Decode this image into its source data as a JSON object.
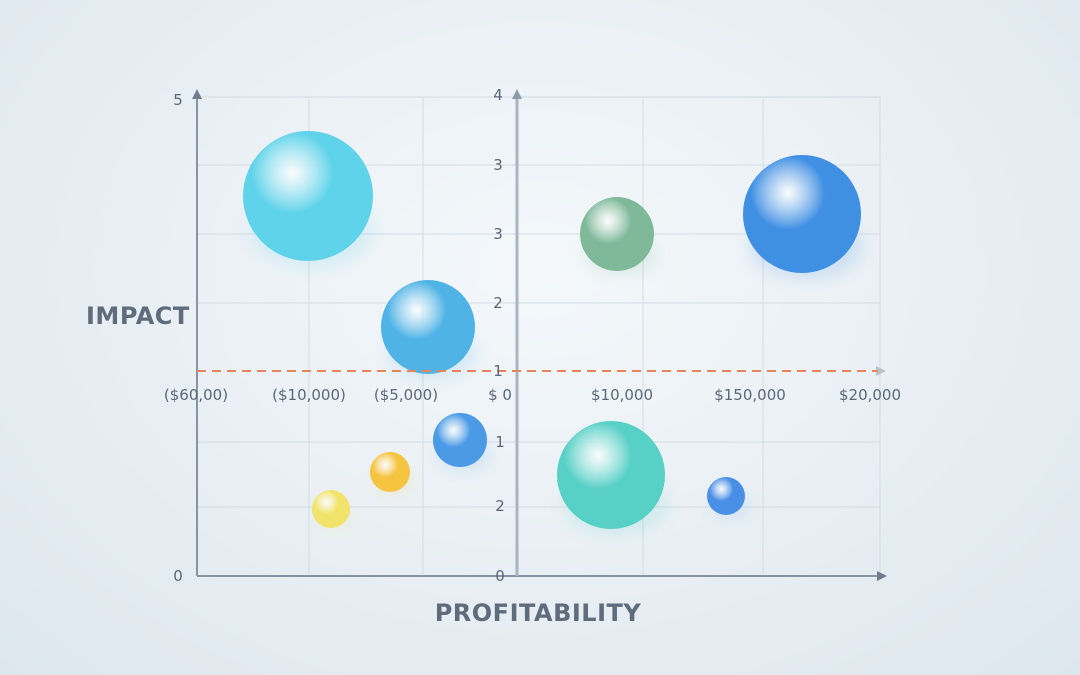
{
  "chart_data": {
    "type": "bubble",
    "title": "",
    "xlabel": "PROFITABILITY",
    "ylabel": "IMPACT",
    "x_tick_labels": [
      "($60,00)",
      "($10,000)",
      "($5,000)",
      "$ 0",
      "$10,000",
      "$150,000",
      "$20,000"
    ],
    "left_y_tick_labels": [
      "5",
      "0"
    ],
    "center_y_tick_labels_upper": [
      "4",
      "3",
      "3",
      "2",
      "1"
    ],
    "center_y_tick_labels_lower": [
      "1",
      "2",
      "0"
    ],
    "reference_line": {
      "style": "dashed",
      "color": "#e8845a",
      "position": "at center-axis 1"
    },
    "grid": true,
    "bubbles": [
      {
        "x": -10000,
        "impact_level": "high",
        "size": "large",
        "color": "#5fd3ea"
      },
      {
        "x": -5000,
        "impact_level": "mid-high",
        "size": "medium-large",
        "color": "#4fb3e6"
      },
      {
        "x": 10000,
        "impact_level": "high",
        "size": "medium",
        "color": "#7fb99a"
      },
      {
        "x": 150000,
        "impact_level": "high",
        "size": "large",
        "color": "#3f8fe3"
      },
      {
        "x": -2000,
        "impact_level": "low",
        "size": "small-medium",
        "color": "#4a9ae6"
      },
      {
        "x": -6000,
        "impact_level": "low",
        "size": "small",
        "color": "#f5c542"
      },
      {
        "x": -9000,
        "impact_level": "low",
        "size": "small",
        "color": "#f2e46a"
      },
      {
        "x": 10000,
        "impact_level": "low",
        "size": "large",
        "color": "#57d0c6"
      },
      {
        "x": 140000,
        "impact_level": "low",
        "size": "small",
        "color": "#4a8fe6"
      }
    ]
  }
}
